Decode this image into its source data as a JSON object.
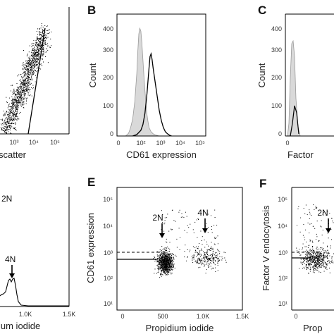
{
  "chart_data": [
    {
      "panel": "A",
      "type": "scatter",
      "xlabel": "... scatter",
      "xticks": [
        "10³",
        "10⁴",
        "10⁵"
      ],
      "visible_label": ""
    },
    {
      "panel": "B",
      "type": "area",
      "title": "",
      "xlabel": "CD61 expression",
      "ylabel": "Count",
      "yticks": [
        "0",
        "100",
        "200",
        "300",
        "400"
      ],
      "xticks": [
        "0",
        "10²",
        "10³",
        "10⁴",
        "10⁵"
      ],
      "ylim": [
        0,
        430
      ],
      "series": [
        {
          "x": [
            1.35,
            1.5,
            1.6,
            1.7,
            1.8,
            1.9,
            1.95,
            2.0,
            2.05,
            2.1,
            2.15,
            2.2,
            2.25,
            2.3,
            2.35,
            2.4,
            2.45,
            2.5,
            2.6,
            2.7,
            2.8,
            2.9,
            3.0
          ],
          "values": [
            0,
            10,
            30,
            60,
            120,
            220,
            300,
            360,
            380,
            370,
            330,
            270,
            210,
            160,
            110,
            75,
            50,
            30,
            15,
            8,
            4,
            2,
            0
          ]
        },
        {
          "x": [
            1.7,
            1.9,
            2.1,
            2.2,
            2.3,
            2.4,
            2.5,
            2.55,
            2.6,
            2.65,
            2.7,
            2.8,
            2.9,
            3.0,
            3.1,
            3.2,
            3.3,
            3.4,
            3.5,
            3.6
          ],
          "values": [
            0,
            5,
            20,
            40,
            80,
            150,
            240,
            280,
            290,
            270,
            240,
            190,
            140,
            90,
            55,
            30,
            15,
            8,
            3,
            0
          ]
        }
      ]
    },
    {
      "panel": "C",
      "type": "area",
      "xlabel": "Factor ...",
      "ylabel": "Count",
      "yticks": [
        "0",
        "100",
        "200",
        "300",
        "400"
      ],
      "ylim": [
        0,
        430
      ]
    },
    {
      "panel": "D",
      "type": "line",
      "xlabel": "...ium iodide",
      "xticks": [
        "1.0K",
        "1.5K"
      ],
      "annotations": [
        "2N",
        "4N"
      ]
    },
    {
      "panel": "E",
      "type": "scatter",
      "xlabel": "Propidium iodide",
      "ylabel": "CD61 expression",
      "xticks": [
        "0",
        "500",
        "1.0K",
        "1.5K"
      ],
      "yticks": [
        "10¹",
        "10²",
        "10³",
        "10⁴",
        "10⁵"
      ],
      "xlim": [
        0,
        1500
      ],
      "ylim_log10": [
        1,
        5
      ],
      "annotations": [
        {
          "text": "2N",
          "x": 530
        },
        {
          "text": "4N",
          "x": 1060
        }
      ],
      "clusters": [
        {
          "x_center": 550,
          "y_log_center": 2.55,
          "count": 900
        },
        {
          "x_center": 1060,
          "y_log_center": 2.7,
          "count": 260
        }
      ],
      "dashed_threshold_log": 2.9,
      "solid_threshold_log": 2.45
    },
    {
      "panel": "F",
      "type": "scatter",
      "xlabel": "Prop...",
      "ylabel": "Factor V endocytosis",
      "yticks": [
        "10¹",
        "10²",
        "10³",
        "10⁴",
        "10⁵"
      ],
      "ylim_log10": [
        1,
        5
      ],
      "annotations": [
        {
          "text": "2N"
        }
      ]
    }
  ],
  "panel_letters": {
    "b": "B",
    "c": "C",
    "e": "E",
    "f": "F"
  },
  "panelA": {
    "xlabel": "scatter",
    "ticks": [
      "10³",
      "10⁴",
      "10⁵"
    ]
  },
  "panelB": {
    "ylabel": "Count",
    "xlabel": "CD61 expression",
    "yticks": [
      "0",
      "100",
      "200",
      "300",
      "400"
    ],
    "xticks": [
      "0",
      "10²",
      "10³",
      "10⁴",
      "10⁵"
    ]
  },
  "panelC": {
    "ylabel": "Count",
    "xlabel": "Factor",
    "yticks": [
      "0",
      "100",
      "200",
      "300",
      "400"
    ],
    "xticks": [
      "0"
    ]
  },
  "panelD": {
    "xlabel": "ium iodide",
    "xticks": [
      "1.0K",
      "1.5K"
    ],
    "ann_2n": "2N",
    "ann_4n": "4N"
  },
  "panelE": {
    "ylabel": "CD61 expression",
    "xlabel": "Propidium iodide",
    "yticks": [
      "10⁵",
      "10⁴",
      "10³",
      "10²",
      "10¹"
    ],
    "xticks": [
      "0",
      "500",
      "1.0K",
      "1.5K"
    ],
    "ann_2n": "2N",
    "ann_4n": "4N"
  },
  "panelF": {
    "ylabel": "Factor V endocytosis",
    "xlabel": "Prop",
    "yticks": [
      "10⁵",
      "10⁴",
      "10³",
      "10²",
      "10¹"
    ],
    "xticks": [
      "0"
    ],
    "ann_2n": "2N"
  }
}
